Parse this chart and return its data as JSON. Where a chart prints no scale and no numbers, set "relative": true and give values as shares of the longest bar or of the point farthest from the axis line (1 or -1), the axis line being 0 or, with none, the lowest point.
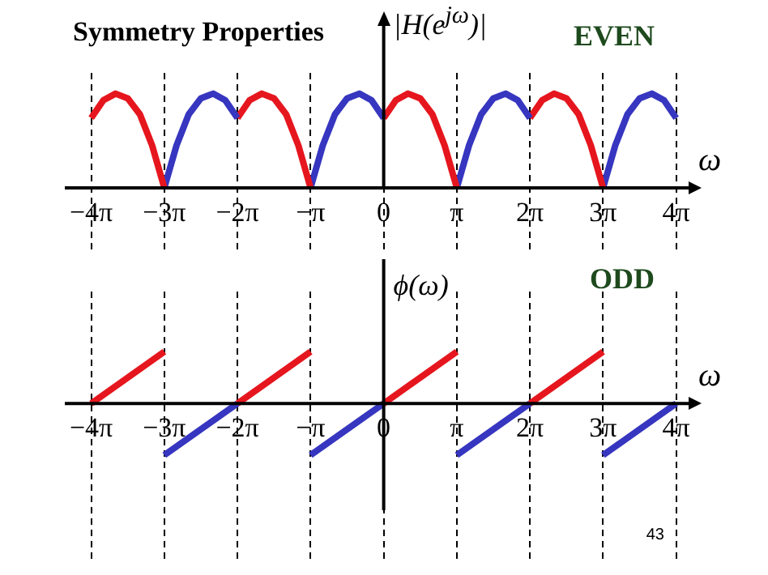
{
  "chart_data": [
    {
      "type": "line",
      "title": "Symmetry Properties",
      "xlabel": "ω",
      "ylabel": "|H(e$^{jω}$)|",
      "annotations": [
        "EVEN"
      ],
      "relative": true,
      "xlim": [
        -13.7,
        13.1
      ],
      "xticks": [
        {
          "value": -12.566,
          "label": "−4π"
        },
        {
          "value": -9.425,
          "label": "−3π"
        },
        {
          "value": -6.283,
          "label": "−2π"
        },
        {
          "value": -3.142,
          "label": "−π"
        },
        0,
        {
          "value": 3.142,
          "label": "π"
        },
        {
          "value": 6.283,
          "label": "2π"
        },
        {
          "value": 9.425,
          "label": "3π"
        },
        {
          "value": 12.566,
          "label": "4π"
        }
      ],
      "grid": "x",
      "series": [
        {
          "color": "#e6161e",
          "x": [
            -12.566,
            -12.043,
            -11.519,
            -10.996,
            -10.472,
            -9.948,
            -9.425
          ],
          "values": [
            0.74,
            0.93,
            1.0,
            0.95,
            0.78,
            0.45,
            0
          ]
        },
        {
          "color": "#3636c0",
          "x": [
            -9.425,
            -8.901,
            -8.378,
            -7.854,
            -7.33,
            -6.807,
            -6.283
          ],
          "values": [
            0,
            0.45,
            0.78,
            0.95,
            1.0,
            0.93,
            0.74
          ]
        },
        {
          "color": "#e6161e",
          "x": [
            -6.283,
            -5.76,
            -5.236,
            -4.712,
            -4.189,
            -3.665,
            -3.142
          ],
          "values": [
            0.74,
            0.93,
            1.0,
            0.95,
            0.78,
            0.45,
            0
          ]
        },
        {
          "color": "#3636c0",
          "x": [
            -3.142,
            -2.618,
            -2.094,
            -1.571,
            -1.047,
            -0.524,
            0
          ],
          "values": [
            0,
            0.45,
            0.78,
            0.95,
            1.0,
            0.93,
            0.74
          ]
        },
        {
          "color": "#e6161e",
          "x": [
            0,
            0.524,
            1.047,
            1.571,
            2.094,
            2.618,
            3.142
          ],
          "values": [
            0.74,
            0.93,
            1.0,
            0.95,
            0.78,
            0.45,
            0
          ]
        },
        {
          "color": "#3636c0",
          "x": [
            3.142,
            3.665,
            4.189,
            4.712,
            5.236,
            5.76,
            6.283
          ],
          "values": [
            0,
            0.45,
            0.78,
            0.95,
            1.0,
            0.93,
            0.74
          ]
        },
        {
          "color": "#e6161e",
          "x": [
            6.283,
            6.807,
            7.33,
            7.854,
            8.378,
            8.901,
            9.425
          ],
          "values": [
            0.74,
            0.93,
            1.0,
            0.95,
            0.78,
            0.45,
            0
          ]
        },
        {
          "color": "#3636c0",
          "x": [
            9.425,
            9.948,
            10.472,
            10.996,
            11.519,
            12.043,
            12.566
          ],
          "values": [
            0,
            0.45,
            0.78,
            0.95,
            1.0,
            0.93,
            0.74
          ]
        }
      ]
    },
    {
      "type": "line",
      "xlabel": "ω",
      "ylabel": "ϕ(ω)",
      "annotations": [
        "ODD",
        "43"
      ],
      "relative": true,
      "xlim": [
        -13.7,
        13.1
      ],
      "xticks": [
        {
          "value": -12.566,
          "label": "−4π"
        },
        {
          "value": -9.425,
          "label": "−3π"
        },
        {
          "value": -6.283,
          "label": "−2π"
        },
        {
          "value": -3.142,
          "label": "−π"
        },
        0,
        {
          "value": 3.142,
          "label": "π"
        },
        {
          "value": 6.283,
          "label": "2π"
        },
        {
          "value": 9.425,
          "label": "3π"
        },
        {
          "value": 12.566,
          "label": "4π"
        }
      ],
      "grid": "x",
      "series": [
        {
          "color": "#e6161e",
          "x": [
            -12.566,
            -9.425
          ],
          "values": [
            0,
            1
          ]
        },
        {
          "color": "#3636c0",
          "x": [
            -9.425,
            -6.283
          ],
          "values": [
            -1,
            0
          ]
        },
        {
          "color": "#e6161e",
          "x": [
            -6.283,
            -3.142
          ],
          "values": [
            0,
            1
          ]
        },
        {
          "color": "#3636c0",
          "x": [
            -3.142,
            0
          ],
          "values": [
            -1,
            0
          ]
        },
        {
          "color": "#e6161e",
          "x": [
            0,
            3.142
          ],
          "values": [
            0,
            1
          ]
        },
        {
          "color": "#3636c0",
          "x": [
            3.142,
            6.283
          ],
          "values": [
            -1,
            0
          ]
        },
        {
          "color": "#e6161e",
          "x": [
            6.283,
            9.425
          ],
          "values": [
            0,
            1
          ]
        },
        {
          "color": "#3636c0",
          "x": [
            9.425,
            12.566
          ],
          "values": [
            -1,
            0
          ]
        }
      ]
    }
  ]
}
